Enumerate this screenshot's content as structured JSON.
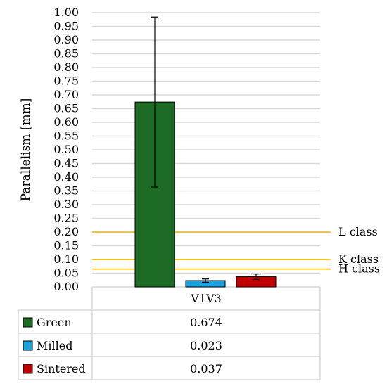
{
  "chart_data": {
    "type": "bar",
    "ylabel": "Parallelism [mm]",
    "ylim": [
      0,
      1.0
    ],
    "y_ticks": [
      "0.00",
      "0.05",
      "0.10",
      "0.15",
      "0.20",
      "0.25",
      "0.30",
      "0.35",
      "0.40",
      "0.45",
      "0.50",
      "0.55",
      "0.60",
      "0.65",
      "0.70",
      "0.75",
      "0.80",
      "0.85",
      "0.90",
      "0.95",
      "1.00"
    ],
    "grid": true,
    "categories": [
      "V1V3"
    ],
    "series": [
      {
        "name": "Green",
        "value": 0.674,
        "value_label": "0.674",
        "error": 0.31,
        "color": "#1e6b26"
      },
      {
        "name": "Milled",
        "value": 0.023,
        "value_label": "0.023",
        "error": 0.006,
        "color": "#1ba1dc"
      },
      {
        "name": "Sintered",
        "value": 0.037,
        "value_label": "0.037",
        "error": 0.01,
        "color": "#c00000"
      }
    ],
    "reference_lines": [
      {
        "label": "L class",
        "value": 0.2,
        "color": "#ffc000"
      },
      {
        "label": "K class",
        "value": 0.1,
        "color": "#ffc000"
      },
      {
        "label": "H class",
        "value": 0.065,
        "color": "#ffc000"
      }
    ]
  }
}
